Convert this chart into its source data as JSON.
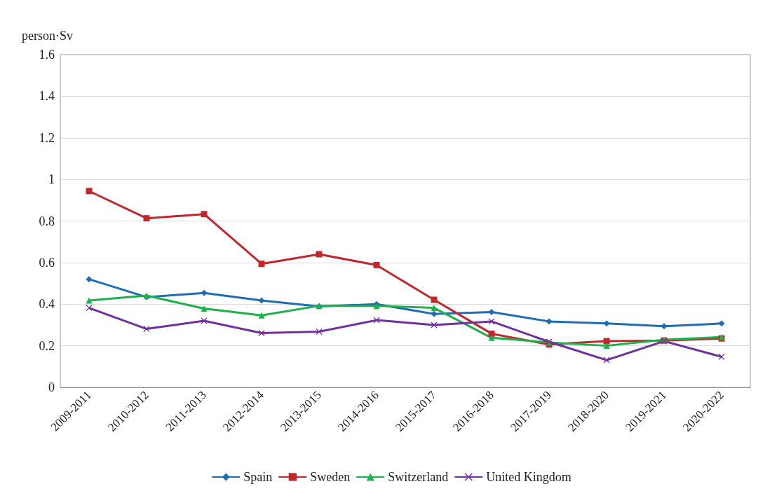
{
  "chart_data": {
    "type": "line",
    "ylabel": "person·Sv",
    "categories": [
      "2009-2011",
      "2010-2012",
      "2011-2013",
      "2012-2014",
      "2013-2015",
      "2014-2016",
      "2015-2017",
      "2016-2018",
      "2017-2019",
      "2018-2020",
      "2019-2021",
      "2020-2022"
    ],
    "series": [
      {
        "name": "Spain",
        "color": "#1f6db5",
        "marker": "diamond",
        "values": [
          0.52,
          0.434,
          0.454,
          0.418,
          0.389,
          0.4,
          0.353,
          0.362,
          0.317,
          0.307,
          0.294,
          0.307
        ]
      },
      {
        "name": "Sweden",
        "color": "#c0282d",
        "marker": "square",
        "values": [
          0.944,
          0.813,
          0.833,
          0.594,
          0.64,
          0.588,
          0.421,
          0.258,
          0.206,
          0.222,
          0.225,
          0.235
        ]
      },
      {
        "name": "Switzerland",
        "color": "#1cb24b",
        "marker": "triangle",
        "values": [
          0.418,
          0.441,
          0.379,
          0.346,
          0.392,
          0.392,
          0.382,
          0.238,
          0.216,
          0.2,
          0.229,
          0.242
        ]
      },
      {
        "name": "United Kingdom",
        "color": "#7030a0",
        "marker": "cross",
        "values": [
          0.382,
          0.281,
          0.32,
          0.261,
          0.268,
          0.323,
          0.3,
          0.317,
          0.219,
          0.131,
          0.222,
          0.147
        ]
      }
    ],
    "ylim": [
      0,
      1.6
    ],
    "yticks": [
      0,
      0.2,
      0.4,
      0.6,
      0.8,
      1,
      1.2,
      1.4,
      1.6
    ],
    "grid": "y",
    "legend": "bottom",
    "line_style": "solid"
  }
}
